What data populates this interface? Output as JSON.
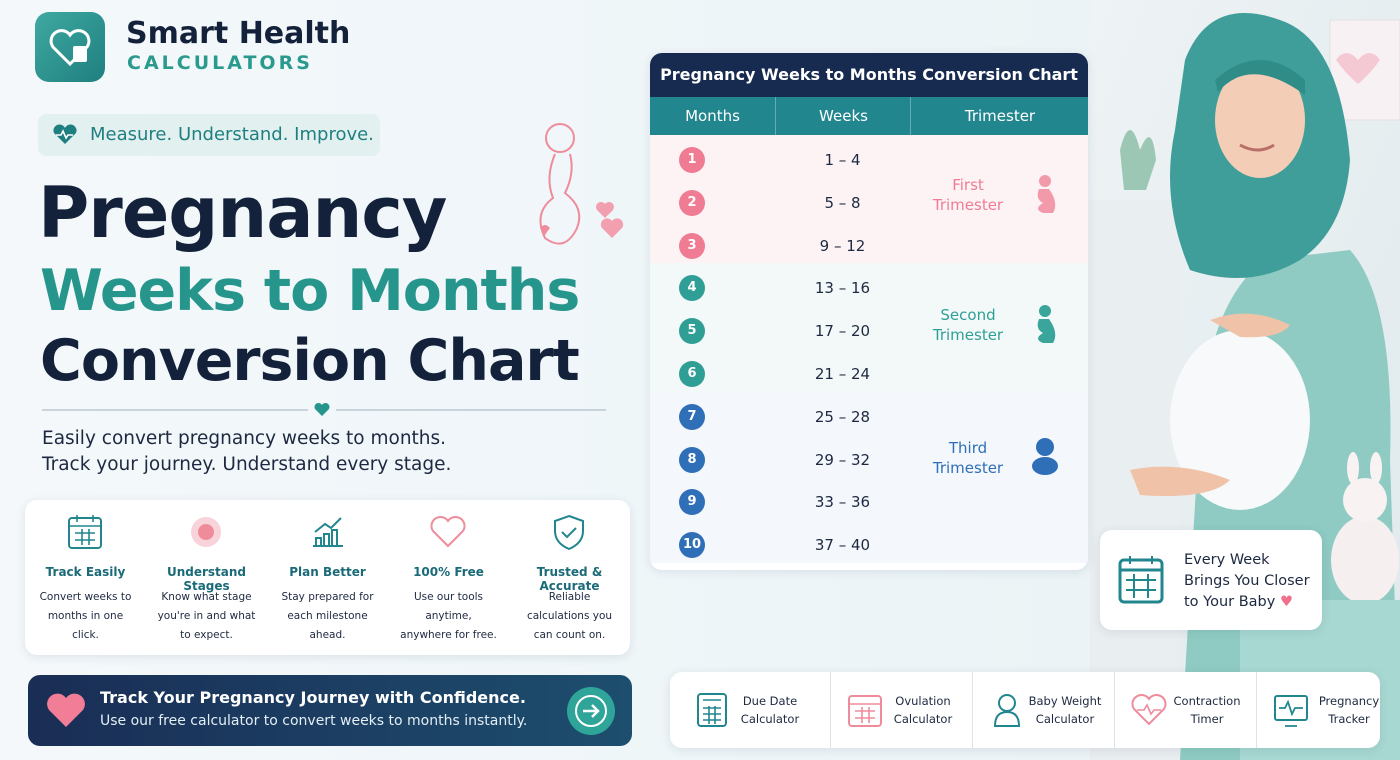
{
  "brand": {
    "name": "Smart Health",
    "sub": "CALCULATORS"
  },
  "tagline": "Measure. Understand. Improve.",
  "title": {
    "line1": "Pregnancy",
    "line2": "Weeks to Months",
    "line3": "Conversion Chart"
  },
  "intro": [
    "Easily convert pregnancy weeks to months.",
    "Track your journey. Understand every stage."
  ],
  "features": [
    {
      "title": "Track Easily",
      "text": "Convert weeks to months in one click."
    },
    {
      "title": "Understand Stages",
      "text": "Know what stage you're in and what to expect."
    },
    {
      "title": "Plan Better",
      "text": "Stay prepared for each milestone ahead."
    },
    {
      "title": "100% Free",
      "text": "Use our tools anytime, anywhere for free."
    },
    {
      "title": "Trusted & Accurate",
      "text": "Reliable calculations you can count on."
    }
  ],
  "cta": {
    "title": "Track Your Pregnancy Journey with Confidence.",
    "text": "Use our free calculator to convert weeks to months instantly."
  },
  "table": {
    "title": "Pregnancy Weeks to Months Conversion Chart",
    "headers": [
      "Months",
      "Weeks",
      "Trimester"
    ],
    "rows": [
      [
        "1",
        "1 – 4"
      ],
      [
        "2",
        "5 – 8"
      ],
      [
        "3",
        "9 – 12"
      ],
      [
        "4",
        "13 – 16"
      ],
      [
        "5",
        "17 – 20"
      ],
      [
        "6",
        "21 – 24"
      ],
      [
        "7",
        "25 – 28"
      ],
      [
        "8",
        "29 – 32"
      ],
      [
        "9",
        "33 – 36"
      ],
      [
        "10",
        "37 – 40"
      ]
    ],
    "trimesters": [
      "First Trimester",
      "Second Trimester",
      "Third Trimester"
    ]
  },
  "callout": "Every Week Brings You Closer to Your Baby",
  "tools": [
    "Due Date Calculator",
    "Ovulation Calculator",
    "Baby Weight Calculator",
    "Contraction Timer",
    "Pregnancy Tracker"
  ]
}
